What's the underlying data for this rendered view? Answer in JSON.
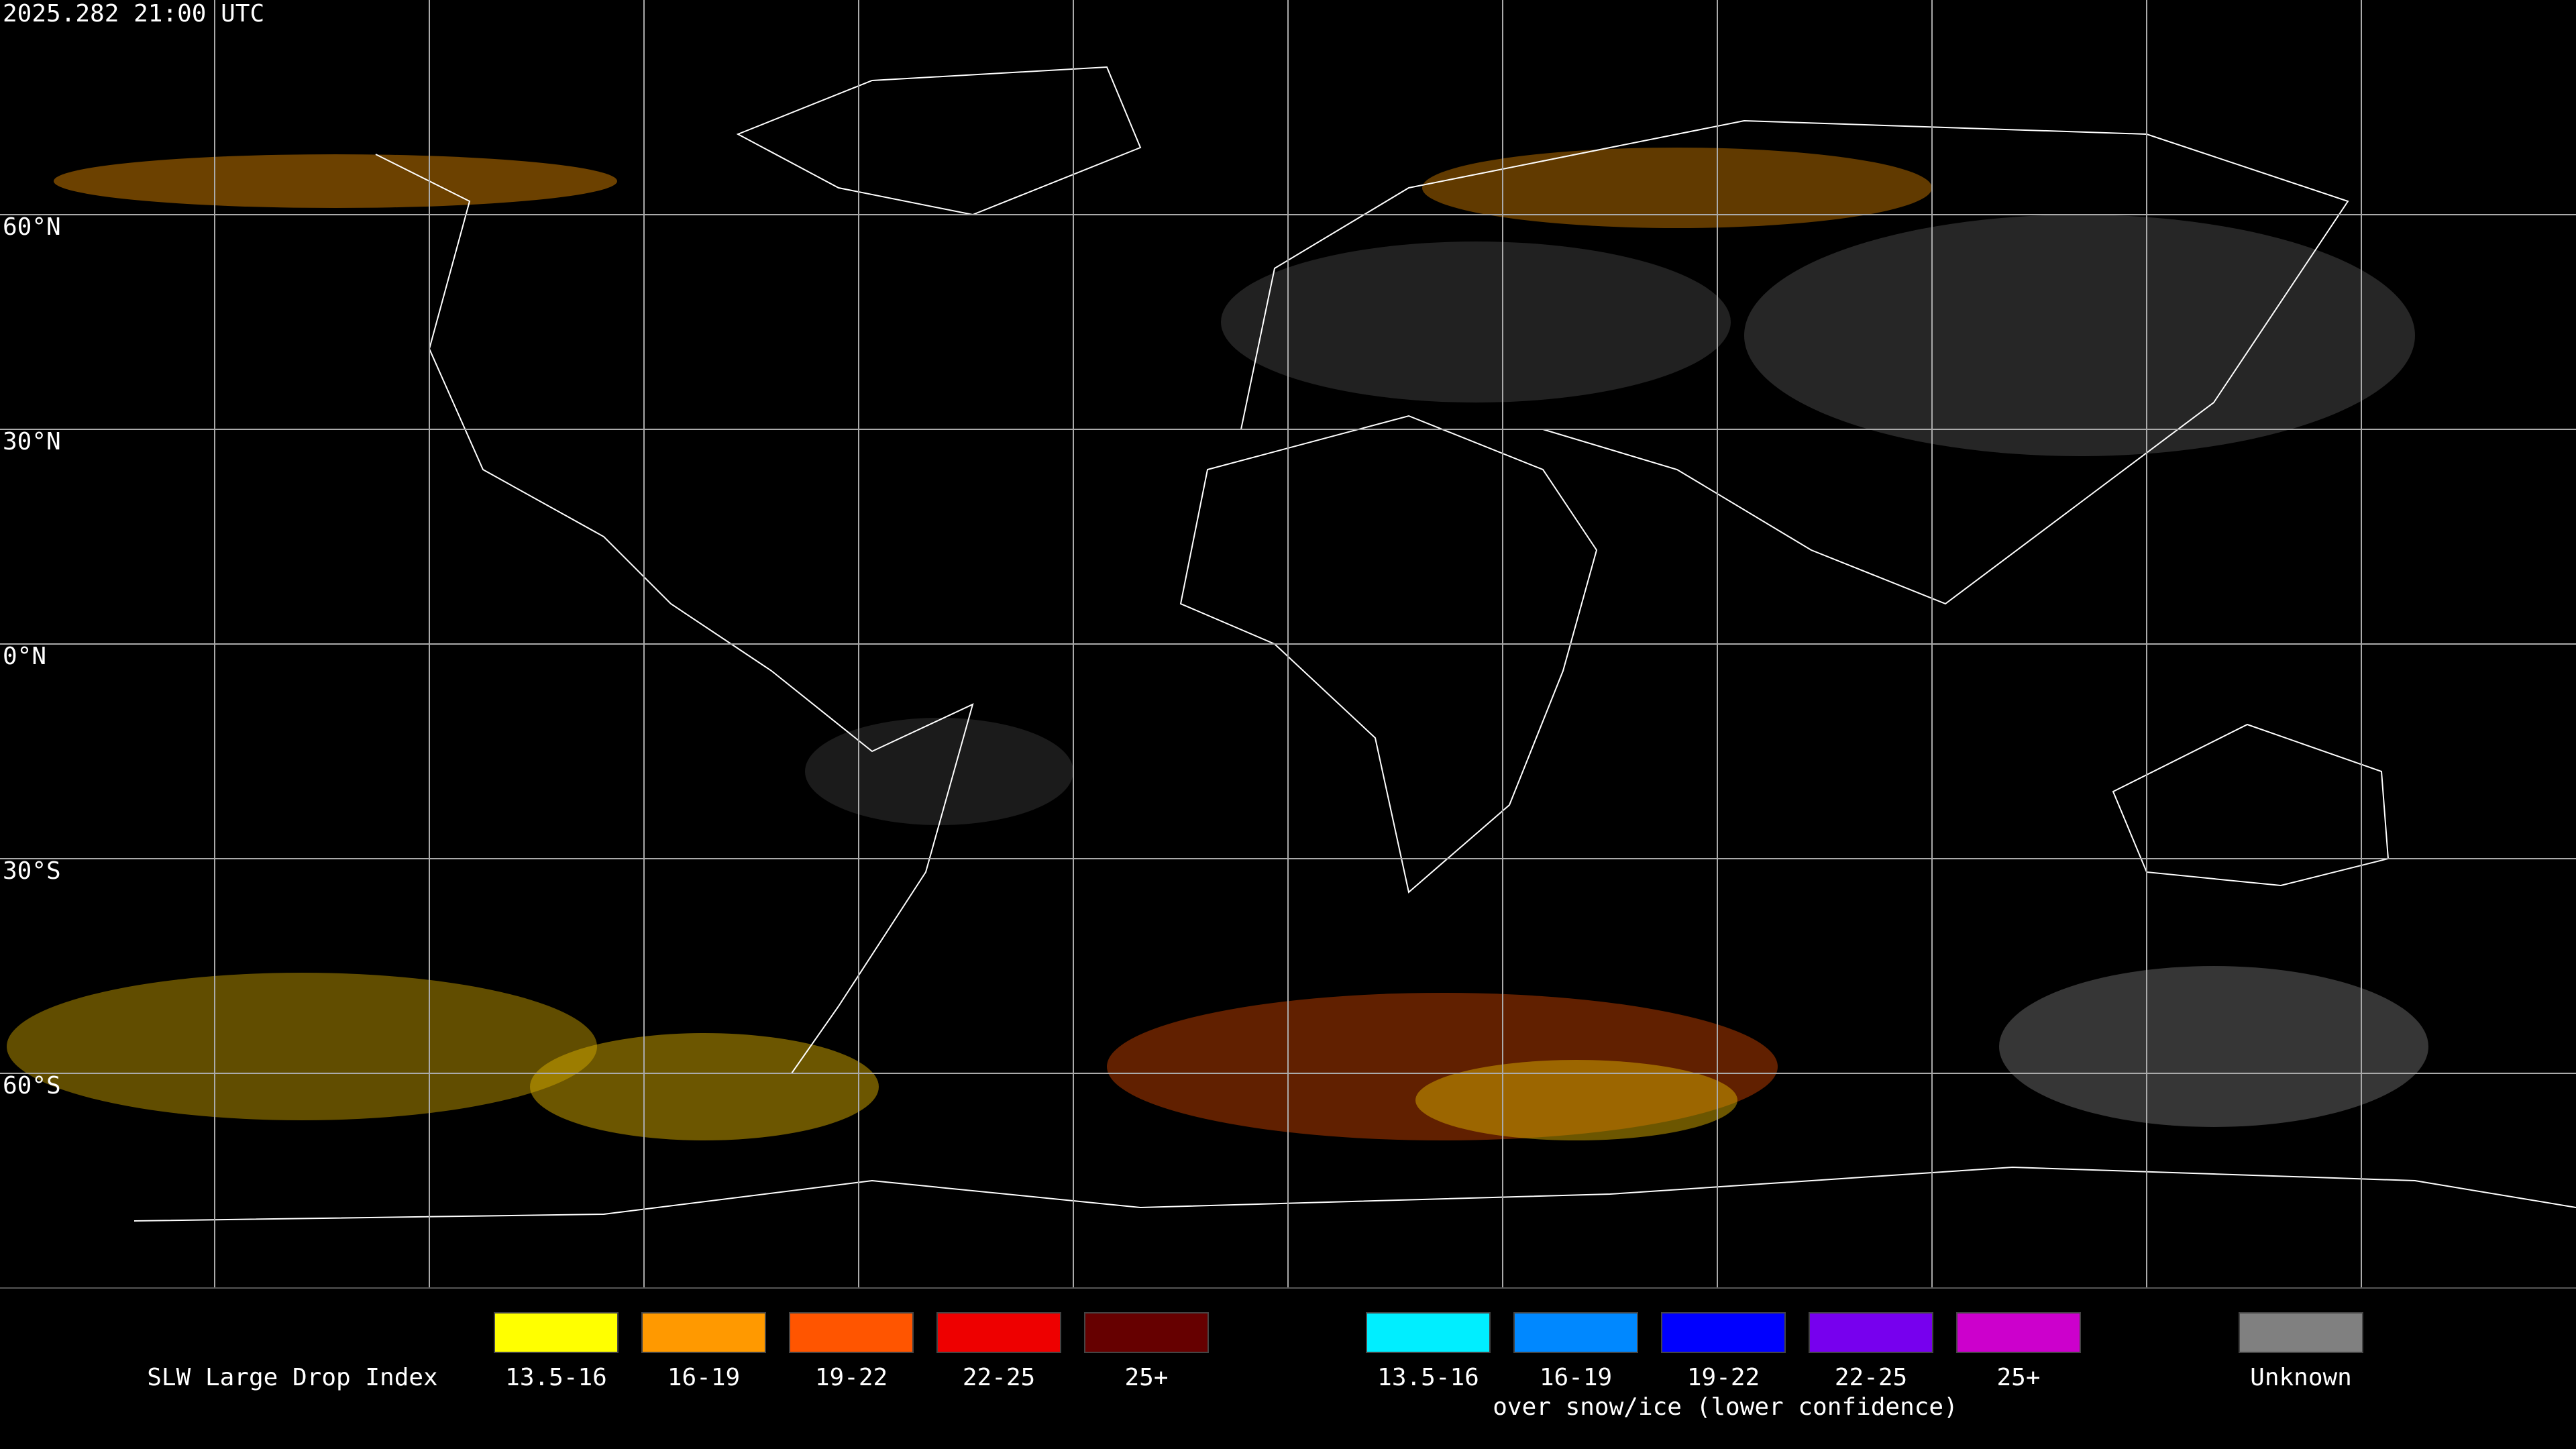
{
  "header": {
    "timestamp": "2025.282 21:00 UTC"
  },
  "map": {
    "latitude_labels": [
      "60°N",
      "30°N",
      "0°N",
      "30°S",
      "60°S"
    ]
  },
  "legend": {
    "title": "SLW Large Drop Index",
    "main_items": [
      {
        "label": "13.5-16",
        "color": "#ffff00"
      },
      {
        "label": "16-19",
        "color": "#ff9900"
      },
      {
        "label": "19-22",
        "color": "#ff5500"
      },
      {
        "label": "22-25",
        "color": "#ee0000"
      },
      {
        "label": "25+",
        "color": "#660000"
      }
    ],
    "snow_items": [
      {
        "label": "13.5-16",
        "color": "#00eeff"
      },
      {
        "label": "16-19",
        "color": "#0088ff"
      },
      {
        "label": "19-22",
        "color": "#0000ff"
      },
      {
        "label": "22-25",
        "color": "#7700ee"
      },
      {
        "label": "25+",
        "color": "#cc00cc"
      }
    ],
    "snow_caption": "over snow/ice (lower confidence)",
    "unknown": {
      "label": "Unknown",
      "color": "#808080"
    }
  }
}
